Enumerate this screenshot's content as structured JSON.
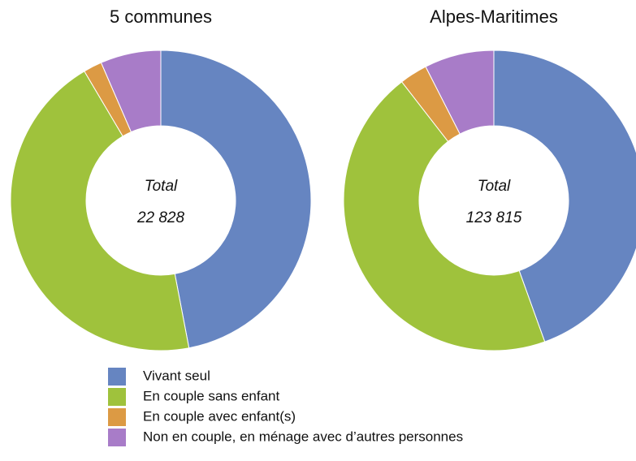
{
  "chart_data": [
    {
      "type": "donut",
      "title": "5 communes",
      "center_label": "Total",
      "total_label": "22 828",
      "categories": [
        "Vivant seul",
        "En couple sans enfant",
        "En couple avec enfant(s)",
        "Non en couple, en ménage avec d’autres personnes"
      ],
      "values": [
        47,
        44.5,
        2,
        6.5
      ],
      "colors": [
        "#6685c1",
        "#9fc23c",
        "#dc9a44",
        "#a87cc8"
      ]
    },
    {
      "type": "donut",
      "title": "Alpes-Maritimes",
      "center_label": "Total",
      "total_label": "123 815",
      "categories": [
        "Vivant seul",
        "En couple sans enfant",
        "En couple avec enfant(s)",
        "Non en couple, en ménage avec d’autres personnes"
      ],
      "values": [
        44.5,
        45,
        3,
        7.5
      ],
      "colors": [
        "#6685c1",
        "#9fc23c",
        "#dc9a44",
        "#a87cc8"
      ]
    }
  ]
}
